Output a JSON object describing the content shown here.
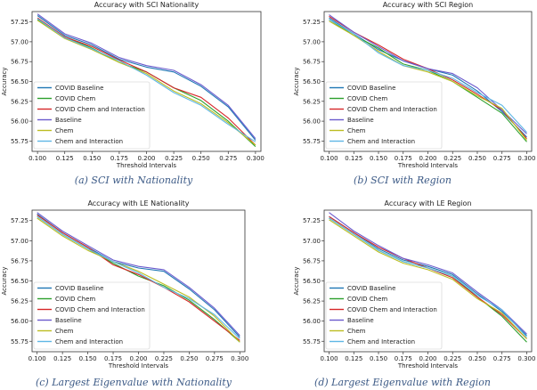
{
  "chart_data": [
    {
      "type": "line",
      "title": "Accuracy with SCI Nationality",
      "xlabel": "Threshold Intervals",
      "ylabel": "Accuracy",
      "caption": "(a) SCI with Nationality",
      "xlim": [
        0.095,
        0.305
      ],
      "ylim": [
        55.62,
        57.38
      ],
      "xticks": [
        "0.100",
        "0.125",
        "0.150",
        "0.175",
        "0.200",
        "0.225",
        "0.250",
        "0.275",
        "0.300"
      ],
      "yticks": [
        "55.75",
        "56.00",
        "56.25",
        "56.50",
        "56.75",
        "57.00",
        "57.25"
      ],
      "grid": false,
      "legend_position": "lower-left",
      "x": [
        0.1,
        0.125,
        0.15,
        0.175,
        0.2,
        0.225,
        0.25,
        0.275,
        0.3
      ],
      "series": [
        {
          "name": "COVID Baseline",
          "color": "#1f77b4",
          "values": [
            57.33,
            57.08,
            56.96,
            56.78,
            56.68,
            56.62,
            56.44,
            56.18,
            55.76
          ]
        },
        {
          "name": "COVID Chem",
          "color": "#2ca02c",
          "values": [
            57.28,
            57.06,
            56.92,
            56.74,
            56.62,
            56.42,
            56.26,
            56.0,
            55.68
          ]
        },
        {
          "name": "COVID Chem and Interaction",
          "color": "#d62728",
          "values": [
            57.3,
            57.06,
            56.94,
            56.77,
            56.62,
            56.42,
            56.3,
            56.04,
            55.7
          ]
        },
        {
          "name": "Baseline",
          "color": "#6a5acd",
          "values": [
            57.35,
            57.1,
            56.98,
            56.8,
            56.7,
            56.64,
            56.46,
            56.2,
            55.78
          ]
        },
        {
          "name": "Chem",
          "color": "#bcbd22",
          "values": [
            57.27,
            57.04,
            56.9,
            56.74,
            56.6,
            56.38,
            56.22,
            55.98,
            55.7
          ]
        },
        {
          "name": "Chem and Interaction",
          "color": "#5fb7e5",
          "values": [
            57.29,
            57.05,
            56.91,
            56.76,
            56.58,
            56.36,
            56.2,
            55.96,
            55.74
          ]
        }
      ]
    },
    {
      "type": "line",
      "title": "Accuracy with SCI Region",
      "xlabel": "Threshold Intervals",
      "ylabel": "Accuracy",
      "caption": "(b) SCI with Region",
      "xlim": [
        0.095,
        0.305
      ],
      "ylim": [
        55.62,
        57.38
      ],
      "xticks": [
        "0.100",
        "0.125",
        "0.150",
        "0.175",
        "0.200",
        "0.225",
        "0.250",
        "0.275",
        "0.300"
      ],
      "yticks": [
        "55.75",
        "56.00",
        "56.25",
        "56.50",
        "56.75",
        "57.00",
        "57.25"
      ],
      "grid": false,
      "legend_position": "lower-left",
      "x": [
        0.1,
        0.125,
        0.15,
        0.175,
        0.2,
        0.225,
        0.25,
        0.275,
        0.3
      ],
      "series": [
        {
          "name": "COVID Baseline",
          "color": "#1f77b4",
          "values": [
            57.3,
            57.1,
            56.9,
            56.76,
            56.66,
            56.58,
            56.38,
            56.12,
            55.8
          ]
        },
        {
          "name": "COVID Chem",
          "color": "#2ca02c",
          "values": [
            57.28,
            57.08,
            56.92,
            56.72,
            56.64,
            56.5,
            56.3,
            56.1,
            55.74
          ]
        },
        {
          "name": "COVID Chem and Interaction",
          "color": "#d62728",
          "values": [
            57.32,
            57.12,
            56.96,
            56.78,
            56.66,
            56.52,
            56.34,
            56.14,
            55.78
          ]
        },
        {
          "name": "Baseline",
          "color": "#6a5acd",
          "values": [
            57.34,
            57.12,
            56.94,
            56.76,
            56.66,
            56.6,
            56.42,
            56.14,
            55.84
          ]
        },
        {
          "name": "Chem",
          "color": "#bcbd22",
          "values": [
            57.26,
            57.08,
            56.88,
            56.7,
            56.62,
            56.5,
            56.32,
            56.16,
            55.76
          ]
        },
        {
          "name": "Chem and Interaction",
          "color": "#5fb7e5",
          "values": [
            57.28,
            57.1,
            56.86,
            56.7,
            56.64,
            56.54,
            56.36,
            56.2,
            55.86
          ]
        }
      ]
    },
    {
      "type": "line",
      "title": "Accuracy with LE Nationality",
      "xlabel": "Threshold Intervals",
      "ylabel": "Accuracy",
      "caption": "(c) Largest Eigenvalue with Nationality",
      "xlim": [
        0.095,
        0.305
      ],
      "ylim": [
        55.62,
        57.38
      ],
      "xticks": [
        "0.100",
        "0.125",
        "0.150",
        "0.175",
        "0.200",
        "0.225",
        "0.250",
        "0.275",
        "0.300"
      ],
      "yticks": [
        "55.75",
        "56.00",
        "56.25",
        "56.50",
        "56.75",
        "57.00",
        "57.25"
      ],
      "grid": false,
      "legend_position": "lower-left",
      "x": [
        0.1,
        0.125,
        0.15,
        0.175,
        0.2,
        0.225,
        0.25,
        0.275,
        0.3
      ],
      "series": [
        {
          "name": "COVID Baseline",
          "color": "#1f77b4",
          "values": [
            57.33,
            57.1,
            56.92,
            56.74,
            56.66,
            56.62,
            56.4,
            56.14,
            55.8
          ]
        },
        {
          "name": "COVID Chem",
          "color": "#2ca02c",
          "values": [
            57.3,
            57.08,
            56.9,
            56.72,
            56.56,
            56.44,
            56.26,
            56.02,
            55.74
          ]
        },
        {
          "name": "COVID Chem and Interaction",
          "color": "#d62728",
          "values": [
            57.32,
            57.1,
            56.92,
            56.7,
            56.58,
            56.42,
            56.24,
            56.0,
            55.76
          ]
        },
        {
          "name": "Baseline",
          "color": "#6a5acd",
          "values": [
            57.35,
            57.12,
            56.94,
            56.76,
            56.68,
            56.64,
            56.42,
            56.16,
            55.82
          ]
        },
        {
          "name": "Chem",
          "color": "#bcbd22",
          "values": [
            57.28,
            57.06,
            56.88,
            56.74,
            56.62,
            56.46,
            56.3,
            56.06,
            55.74
          ]
        },
        {
          "name": "Chem and Interaction",
          "color": "#5fb7e5",
          "values": [
            57.3,
            57.08,
            56.9,
            56.74,
            56.6,
            56.42,
            56.28,
            56.08,
            55.78
          ]
        }
      ]
    },
    {
      "type": "line",
      "title": "Accuracy with LE Region",
      "xlabel": "Threshold Intervals",
      "ylabel": "Accuracy",
      "caption": "(d) Largest Eigenvalue with Region",
      "xlim": [
        0.095,
        0.305
      ],
      "ylim": [
        55.62,
        57.38
      ],
      "xticks": [
        "0.100",
        "0.125",
        "0.150",
        "0.175",
        "0.200",
        "0.225",
        "0.250",
        "0.275",
        "0.300"
      ],
      "yticks": [
        "55.75",
        "56.00",
        "56.25",
        "56.50",
        "56.75",
        "57.00",
        "57.25"
      ],
      "grid": false,
      "legend_position": "lower-left",
      "x": [
        0.1,
        0.125,
        0.15,
        0.175,
        0.2,
        0.225,
        0.25,
        0.275,
        0.3
      ],
      "series": [
        {
          "name": "COVID Baseline",
          "color": "#1f77b4",
          "values": [
            57.3,
            57.1,
            56.9,
            56.76,
            56.68,
            56.58,
            56.34,
            56.12,
            55.82
          ]
        },
        {
          "name": "COVID Chem",
          "color": "#2ca02c",
          "values": [
            57.28,
            57.08,
            56.88,
            56.74,
            56.66,
            56.56,
            56.3,
            56.06,
            55.74
          ]
        },
        {
          "name": "COVID Chem and Interaction",
          "color": "#d62728",
          "values": [
            57.3,
            57.1,
            56.92,
            56.78,
            56.66,
            56.54,
            56.3,
            56.08,
            55.78
          ]
        },
        {
          "name": "Baseline",
          "color": "#6a5acd",
          "values": [
            57.35,
            57.12,
            56.94,
            56.78,
            56.7,
            56.6,
            56.36,
            56.14,
            55.84
          ]
        },
        {
          "name": "Chem",
          "color": "#bcbd22",
          "values": [
            57.26,
            57.06,
            56.86,
            56.72,
            56.64,
            56.52,
            56.28,
            56.1,
            55.78
          ]
        },
        {
          "name": "Chem and Interaction",
          "color": "#5fb7e5",
          "values": [
            57.28,
            57.08,
            56.88,
            56.74,
            56.66,
            56.56,
            56.32,
            56.14,
            55.8
          ]
        }
      ]
    }
  ]
}
